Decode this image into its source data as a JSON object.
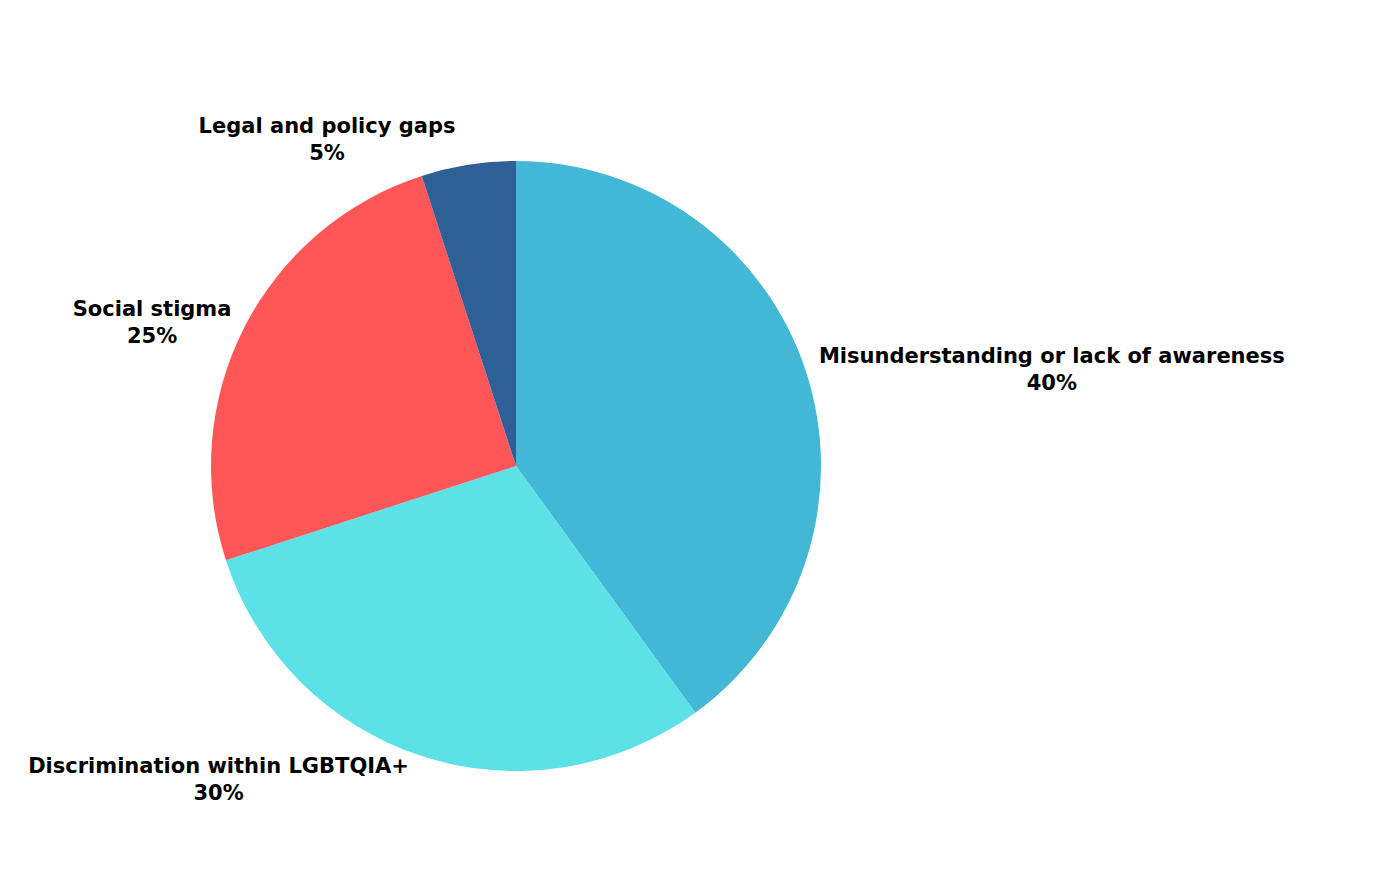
{
  "chart_data": {
    "type": "pie",
    "categories": [
      "Misunderstanding or lack of awareness",
      "Discrimination within LGBTQIA+",
      "Social stigma",
      "Legal and policy gaps"
    ],
    "values": [
      40,
      30,
      25,
      5
    ],
    "value_labels": [
      "40%",
      "30%",
      "25%",
      "5%"
    ],
    "colors": [
      "#43b8d6",
      "#5ce1e6",
      "#ff5757",
      "#2e6096"
    ],
    "data_labels": true
  }
}
